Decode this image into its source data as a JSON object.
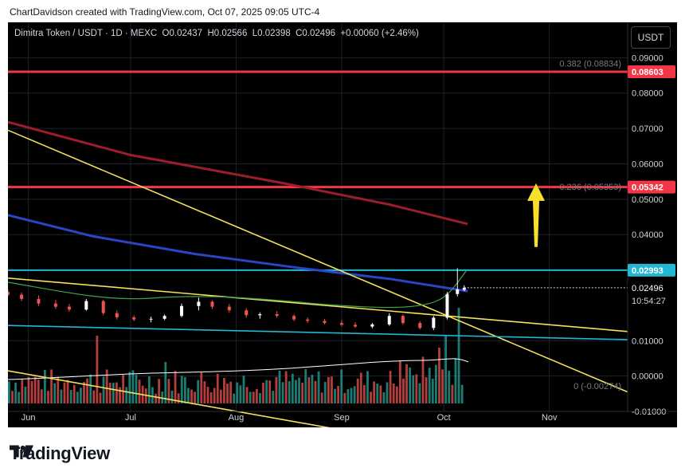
{
  "caption": "ChartDavidson created with TradingView.com, Oct 07, 2025 09:05 UTC-4",
  "brand": "TradingView",
  "currency_button": "USDT",
  "legend": {
    "symbol": "Dimitra Token / USDT · 1D · MEXC",
    "o_label": "O",
    "o": "0.02437",
    "h_label": "H",
    "h": "0.02566",
    "l_label": "L",
    "l": "0.02398",
    "c_label": "C",
    "c": "0.02496",
    "change": "+0.00060 (+2.46%)"
  },
  "colors": {
    "up": "#ffffff",
    "down": "#ef5350",
    "vol_up": "#26a69a",
    "vol_down": "#ef5350",
    "red_level": "#f23645",
    "cyan_level": "#22b7d3",
    "yellow": "#f5e05a",
    "blue_ma": "#2b45c8",
    "darkred_ma": "#9b1e2a",
    "arrow": "#f7e02c"
  },
  "chart_data": {
    "type": "candlestick",
    "symbol": "Dimitra Token / USDT",
    "timeframe": "1D",
    "exchange": "MEXC",
    "x_ticks": [
      "Jun",
      "Jul",
      "Aug",
      "Sep",
      "Oct",
      "Nov"
    ],
    "y_ticks": [
      "0.09000",
      "0.08000",
      "0.07000",
      "0.06000",
      "0.05000",
      "0.04000",
      "0.01000",
      "0.00000",
      "-0.01000"
    ],
    "ylim": [
      -0.0145,
      0.1
    ],
    "price_labels": [
      {
        "text": "0.08603",
        "value": 0.08603,
        "style": "red"
      },
      {
        "text": "0.05342",
        "value": 0.05342,
        "style": "red"
      },
      {
        "text": "0.02993",
        "value": 0.02993,
        "style": "cyan"
      },
      {
        "text": "0.02496",
        "value": 0.02496,
        "style": "white"
      },
      {
        "text": "10:54:27",
        "value": 0.0222,
        "style": "countdown"
      }
    ],
    "horizontal_levels": [
      {
        "value": 0.08603,
        "color": "red"
      },
      {
        "value": 0.05342,
        "color": "red"
      },
      {
        "value": 0.02993,
        "color": "cyan"
      }
    ],
    "fib_labels": [
      {
        "text": "0.382 (0.08834)",
        "value": 0.08834
      },
      {
        "text": "0.236 (0.05353)",
        "value": 0.05353
      },
      {
        "text": "0 (-0.00274)",
        "value": -0.00274
      }
    ],
    "trendlines": [
      {
        "color": "yellow",
        "points": [
          [
            "2025-05-26",
            0.0695
          ],
          [
            "2025-11-24",
            -0.0045
          ]
        ]
      },
      {
        "color": "yellow",
        "points": [
          [
            "2025-05-26",
            0.0277
          ],
          [
            "2025-11-24",
            0.0126
          ]
        ]
      },
      {
        "color": "yellow",
        "points": [
          [
            "2025-05-26",
            0.0015
          ],
          [
            "2025-09-20",
            -0.0185
          ]
        ]
      },
      {
        "color": "cyan",
        "points": [
          [
            "2025-05-26",
            0.0143
          ],
          [
            "2025-11-24",
            0.0103
          ]
        ]
      }
    ],
    "moving_averages": [
      {
        "color": "darkred",
        "points": [
          [
            "2025-05-26",
            0.0718
          ],
          [
            "2025-07-01",
            0.0625
          ],
          [
            "2025-08-15",
            0.0545
          ],
          [
            "2025-09-15",
            0.0485
          ],
          [
            "2025-10-08",
            0.043
          ]
        ]
      },
      {
        "color": "blue",
        "points": [
          [
            "2025-05-26",
            0.0455
          ],
          [
            "2025-06-20",
            0.0395
          ],
          [
            "2025-07-20",
            0.0345
          ],
          [
            "2025-08-20",
            0.0305
          ],
          [
            "2025-09-15",
            0.0275
          ],
          [
            "2025-10-08",
            0.024
          ]
        ]
      }
    ],
    "candles": [
      [
        "2025-05-26",
        0.0238,
        0.0245,
        0.0225,
        0.023
      ],
      [
        "2025-05-30",
        0.023,
        0.0236,
        0.0212,
        0.0218
      ],
      [
        "2025-06-04",
        0.0218,
        0.0228,
        0.0198,
        0.0205
      ],
      [
        "2025-06-09",
        0.0205,
        0.0215,
        0.019,
        0.0196
      ],
      [
        "2025-06-13",
        0.0196,
        0.0204,
        0.0182,
        0.0188
      ],
      [
        "2025-06-18",
        0.0188,
        0.0218,
        0.0185,
        0.0212
      ],
      [
        "2025-06-23",
        0.0212,
        0.0216,
        0.0172,
        0.0178
      ],
      [
        "2025-06-27",
        0.0178,
        0.0186,
        0.016,
        0.0166
      ],
      [
        "2025-07-02",
        0.0166,
        0.0172,
        0.0155,
        0.016
      ],
      [
        "2025-07-07",
        0.016,
        0.0168,
        0.0152,
        0.0162
      ],
      [
        "2025-07-11",
        0.0162,
        0.0174,
        0.0158,
        0.017
      ],
      [
        "2025-07-16",
        0.017,
        0.0205,
        0.0166,
        0.0198
      ],
      [
        "2025-07-21",
        0.0198,
        0.0222,
        0.0186,
        0.021
      ],
      [
        "2025-07-25",
        0.021,
        0.0214,
        0.019,
        0.0196
      ],
      [
        "2025-07-30",
        0.0196,
        0.0204,
        0.018,
        0.0186
      ],
      [
        "2025-08-04",
        0.0186,
        0.0192,
        0.0165,
        0.0172
      ],
      [
        "2025-08-08",
        0.0172,
        0.018,
        0.0162,
        0.0175
      ],
      [
        "2025-08-13",
        0.0175,
        0.0184,
        0.0165,
        0.017
      ],
      [
        "2025-08-18",
        0.017,
        0.0174,
        0.0155,
        0.016
      ],
      [
        "2025-08-22",
        0.016,
        0.0166,
        0.015,
        0.0156
      ],
      [
        "2025-08-27",
        0.0156,
        0.0162,
        0.0146,
        0.015
      ],
      [
        "2025-09-01",
        0.015,
        0.0158,
        0.014,
        0.0145
      ],
      [
        "2025-09-05",
        0.0145,
        0.0152,
        0.0136,
        0.014
      ],
      [
        "2025-09-10",
        0.014,
        0.015,
        0.0135,
        0.0146
      ],
      [
        "2025-09-15",
        0.0146,
        0.0178,
        0.0142,
        0.017
      ],
      [
        "2025-09-19",
        0.017,
        0.0174,
        0.0145,
        0.015
      ],
      [
        "2025-09-24",
        0.015,
        0.0155,
        0.0132,
        0.0136
      ],
      [
        "2025-09-28",
        0.0136,
        0.017,
        0.013,
        0.0165
      ],
      [
        "2025-10-02",
        0.0165,
        0.0238,
        0.016,
        0.0232
      ],
      [
        "2025-10-05",
        0.0232,
        0.0305,
        0.0225,
        0.0245
      ],
      [
        "2025-10-07",
        0.02437,
        0.02566,
        0.02398,
        0.02496
      ]
    ],
    "volume_histogram": "relative bars at bottom of pane, mostly red/green with spikes near Sep end and early Oct"
  }
}
